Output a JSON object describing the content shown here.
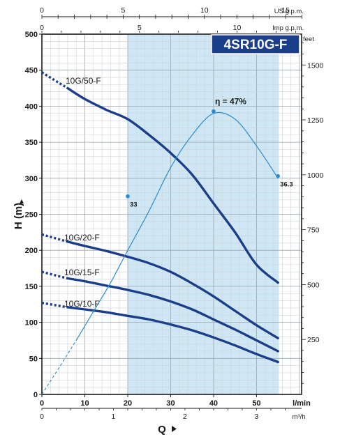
{
  "chart_data": {
    "type": "line",
    "title": "4SR10G-F",
    "xlabel": "Q",
    "ylabel": "H (m)",
    "x_unit": "l/min",
    "xlim": [
      0,
      56
    ],
    "ylim": [
      0,
      500
    ],
    "grid": true,
    "x_ticks": [
      "0",
      "10",
      "20",
      "30",
      "40",
      "50"
    ],
    "y_ticks": [
      "0",
      "50",
      "100",
      "150",
      "200",
      "250",
      "300",
      "350",
      "400",
      "450",
      "500"
    ],
    "feet_axis": {
      "label": "feet",
      "ticks": [
        "250",
        "500",
        "750",
        "1000",
        "1250",
        "1500"
      ],
      "values": [
        250,
        500,
        750,
        1000,
        1250,
        1500
      ]
    },
    "m3h_axis": {
      "label": "m³/h",
      "ticks": [
        "0",
        "1",
        "2",
        "3"
      ],
      "values": [
        0,
        1,
        2,
        3
      ]
    },
    "usgpm_axis": {
      "label": "US g.p.m.",
      "ticks": [
        "0",
        "5",
        "10",
        "15"
      ],
      "values": [
        0,
        5,
        10,
        15
      ]
    },
    "impgpm_axis": {
      "label": "Imp g.p.m.",
      "ticks": [
        "0",
        "5",
        "10"
      ],
      "values": [
        0,
        5,
        10
      ]
    },
    "operating_range": [
      20,
      55
    ],
    "series": [
      {
        "name": "10G/50-F",
        "dashed_until": 6,
        "x": [
          0,
          6,
          10,
          15,
          20,
          25,
          30,
          35,
          40,
          45,
          50,
          55
        ],
        "values": [
          447,
          425,
          410,
          395,
          382,
          360,
          335,
          305,
          265,
          225,
          180,
          155
        ]
      },
      {
        "name": "10G/20-F",
        "dashed_until": 6,
        "x": [
          0,
          6,
          10,
          15,
          20,
          25,
          30,
          35,
          40,
          45,
          50,
          55
        ],
        "values": [
          222,
          212,
          206,
          199,
          191,
          182,
          170,
          154,
          136,
          116,
          96,
          78
        ]
      },
      {
        "name": "10G/15-F",
        "dashed_until": 6,
        "x": [
          0,
          6,
          10,
          15,
          20,
          25,
          30,
          35,
          40,
          45,
          50,
          55
        ],
        "values": [
          170,
          161,
          157,
          151,
          145,
          138,
          129,
          118,
          104,
          90,
          75,
          60
        ]
      },
      {
        "name": "10G/10-F",
        "dashed_until": 6,
        "x": [
          0,
          6,
          10,
          15,
          20,
          25,
          30,
          35,
          40,
          45,
          50,
          55
        ],
        "values": [
          127,
          121,
          118,
          114,
          109,
          104,
          97,
          89,
          79,
          68,
          56,
          45
        ]
      }
    ],
    "efficiency": {
      "label": "η = 47%",
      "dashed_until": 8,
      "x": [
        0,
        4,
        8,
        12,
        16,
        20,
        25,
        30,
        35,
        40,
        45,
        50,
        55
      ],
      "values": [
        0,
        37,
        75,
        115,
        155,
        200,
        255,
        315,
        360,
        390,
        382,
        345,
        300
      ],
      "markers": [
        {
          "x": 20,
          "y": 275,
          "label": "33"
        },
        {
          "x": 40,
          "y": 393,
          "label": ""
        },
        {
          "x": 55,
          "y": 303,
          "label": "36.3"
        }
      ]
    }
  }
}
